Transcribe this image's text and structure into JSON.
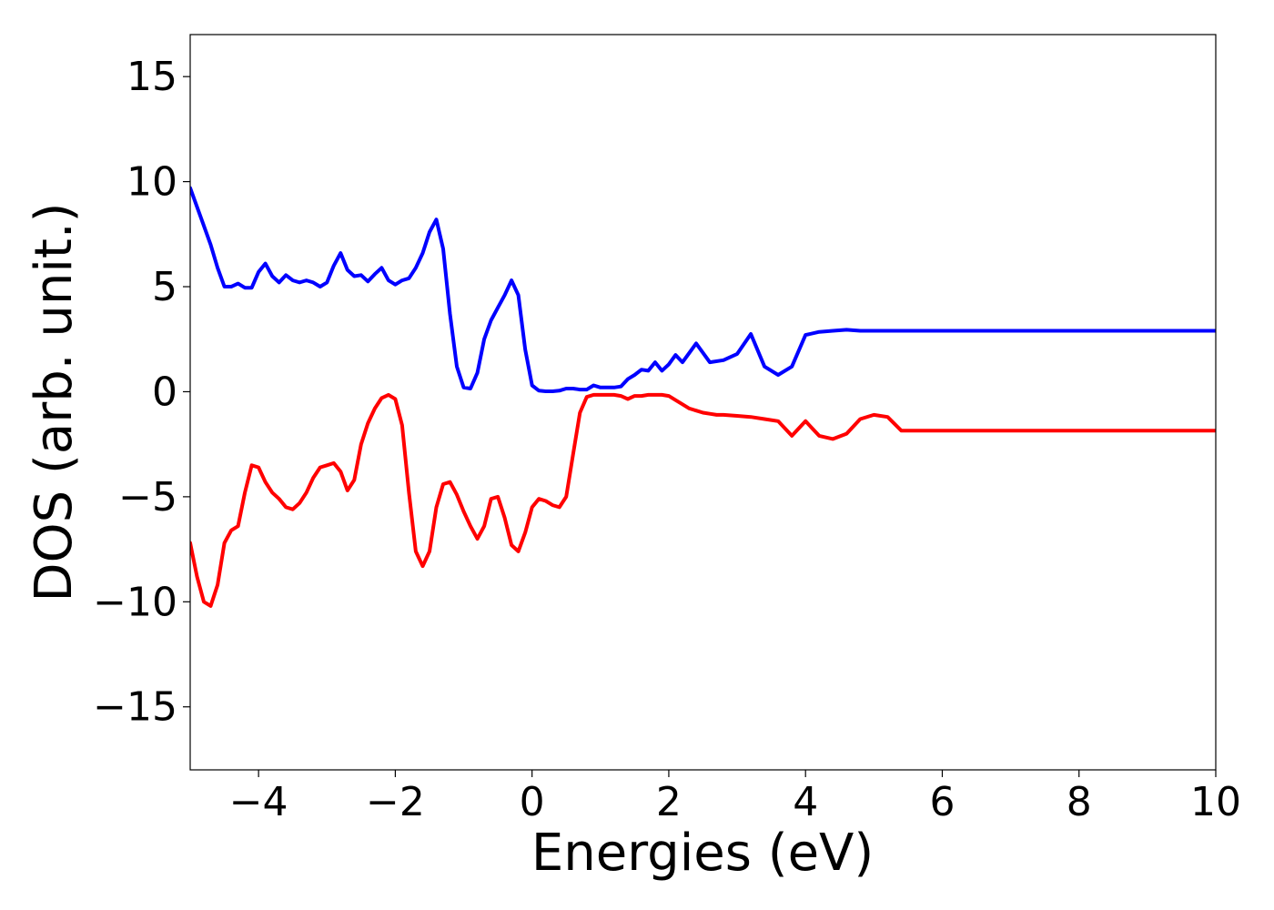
{
  "chart_data": {
    "type": "line",
    "xlabel": "Energies (eV)",
    "ylabel": "DOS (arb. unit.)",
    "xlim": [
      -5,
      10
    ],
    "ylim": [
      -18,
      17
    ],
    "xticks": [
      -4,
      -2,
      0,
      2,
      4,
      6,
      8,
      10
    ],
    "yticks": [
      -15,
      -10,
      -5,
      0,
      5,
      10,
      15
    ],
    "xtick_labels": [
      "−4",
      "−2",
      "0",
      "2",
      "4",
      "6",
      "8",
      "10"
    ],
    "ytick_labels": [
      "−15",
      "−10",
      "−5",
      "0",
      "5",
      "10",
      "15"
    ],
    "grid": false,
    "legend": "none",
    "series": [
      {
        "color": "#0000ff",
        "x": [
          -5.0,
          -4.9,
          -4.8,
          -4.7,
          -4.6,
          -4.5,
          -4.4,
          -4.3,
          -4.2,
          -4.1,
          -4.0,
          -3.9,
          -3.8,
          -3.7,
          -3.6,
          -3.5,
          -3.4,
          -3.3,
          -3.2,
          -3.1,
          -3.0,
          -2.9,
          -2.8,
          -2.7,
          -2.6,
          -2.5,
          -2.4,
          -2.3,
          -2.2,
          -2.1,
          -2.0,
          -1.9,
          -1.8,
          -1.7,
          -1.6,
          -1.5,
          -1.4,
          -1.3,
          -1.2,
          -1.1,
          -1.0,
          -0.9,
          -0.8,
          -0.7,
          -0.6,
          -0.5,
          -0.4,
          -0.3,
          -0.2,
          -0.1,
          0.0,
          0.1,
          0.2,
          0.3,
          0.4,
          0.5,
          0.6,
          0.7,
          0.8,
          0.9,
          1.0,
          1.1,
          1.2,
          1.3,
          1.4,
          1.5,
          1.6,
          1.7,
          1.8,
          1.9,
          2.0,
          2.1,
          2.2,
          2.4,
          2.6,
          2.8,
          3.0,
          3.2,
          3.4,
          3.6,
          3.8,
          4.0,
          4.2,
          4.4,
          4.6,
          4.8,
          5.0,
          5.2,
          5.4,
          5.6,
          5.8,
          6.0,
          6.2,
          6.4,
          6.6,
          6.8,
          7.0,
          7.2,
          7.4,
          7.6,
          7.8,
          8.0,
          8.2,
          8.4,
          8.6,
          8.8,
          9.0,
          9.2,
          9.4,
          9.6,
          9.8,
          10.0
        ],
        "y": [
          9.7,
          8.8,
          7.9,
          7.0,
          5.9,
          5.0,
          5.0,
          5.15,
          4.95,
          4.95,
          5.7,
          6.1,
          5.5,
          5.2,
          5.55,
          5.3,
          5.2,
          5.3,
          5.2,
          5.0,
          5.2,
          6.0,
          6.6,
          5.8,
          5.5,
          5.55,
          5.25,
          5.6,
          5.9,
          5.3,
          5.1,
          5.3,
          5.4,
          5.9,
          6.6,
          7.6,
          8.2,
          6.8,
          3.7,
          1.2,
          0.2,
          0.15,
          0.9,
          2.5,
          3.4,
          4.0,
          4.6,
          5.3,
          4.6,
          2.0,
          0.3,
          0.05,
          0.02,
          0.02,
          0.05,
          0.15,
          0.15,
          0.1,
          0.1,
          0.3,
          0.2,
          0.2,
          0.2,
          0.25,
          0.6,
          0.8,
          1.05,
          1.0,
          1.4,
          1.0,
          1.3,
          1.75,
          1.4,
          2.3,
          1.4,
          1.5,
          1.8,
          2.75,
          1.2,
          0.8,
          1.2,
          2.7,
          2.85,
          2.9,
          2.95,
          2.9,
          2.9,
          2.9,
          2.9,
          2.9,
          2.9,
          2.9,
          2.9,
          2.9,
          2.9,
          2.9,
          2.9,
          2.9,
          2.9,
          2.9,
          2.9,
          2.9,
          2.9,
          2.9,
          2.9,
          2.9,
          2.9,
          2.9,
          2.9,
          2.9,
          2.9,
          2.9
        ]
      },
      {
        "color": "#ff0000",
        "x": [
          -5.0,
          -4.9,
          -4.8,
          -4.7,
          -4.6,
          -4.5,
          -4.4,
          -4.3,
          -4.2,
          -4.1,
          -4.0,
          -3.9,
          -3.8,
          -3.7,
          -3.6,
          -3.5,
          -3.4,
          -3.3,
          -3.2,
          -3.1,
          -3.0,
          -2.9,
          -2.8,
          -2.7,
          -2.6,
          -2.5,
          -2.4,
          -2.3,
          -2.2,
          -2.1,
          -2.0,
          -1.9,
          -1.8,
          -1.7,
          -1.6,
          -1.5,
          -1.4,
          -1.3,
          -1.2,
          -1.1,
          -1.0,
          -0.9,
          -0.8,
          -0.7,
          -0.6,
          -0.5,
          -0.4,
          -0.3,
          -0.2,
          -0.1,
          0.0,
          0.1,
          0.2,
          0.3,
          0.4,
          0.5,
          0.6,
          0.7,
          0.8,
          0.9,
          1.0,
          1.1,
          1.2,
          1.3,
          1.4,
          1.5,
          1.6,
          1.7,
          1.8,
          1.9,
          2.0,
          2.1,
          2.2,
          2.3,
          2.4,
          2.5,
          2.6,
          2.7,
          2.8,
          3.0,
          3.2,
          3.4,
          3.6,
          3.8,
          4.0,
          4.2,
          4.4,
          4.6,
          4.8,
          5.0,
          5.2,
          5.4,
          5.6,
          5.8,
          6.0,
          6.2,
          6.4,
          6.6,
          6.8,
          7.0,
          7.2,
          7.4,
          7.6,
          7.8,
          8.0,
          8.2,
          8.4,
          8.6,
          8.8,
          9.0,
          9.2,
          9.4,
          9.6,
          9.8,
          10.0
        ],
        "y": [
          -7.2,
          -8.8,
          -10.0,
          -10.2,
          -9.2,
          -7.2,
          -6.6,
          -6.4,
          -4.8,
          -3.5,
          -3.6,
          -4.3,
          -4.8,
          -5.1,
          -5.5,
          -5.6,
          -5.3,
          -4.8,
          -4.1,
          -3.6,
          -3.5,
          -3.4,
          -3.8,
          -4.7,
          -4.2,
          -2.5,
          -1.5,
          -0.8,
          -0.3,
          -0.15,
          -0.35,
          -1.6,
          -4.8,
          -7.6,
          -8.3,
          -7.6,
          -5.5,
          -4.4,
          -4.3,
          -4.9,
          -5.7,
          -6.4,
          -7.0,
          -6.4,
          -5.1,
          -5.0,
          -6.0,
          -7.3,
          -7.6,
          -6.7,
          -5.5,
          -5.1,
          -5.2,
          -5.4,
          -5.5,
          -5.0,
          -3.0,
          -1.0,
          -0.25,
          -0.15,
          -0.15,
          -0.15,
          -0.15,
          -0.2,
          -0.35,
          -0.2,
          -0.2,
          -0.15,
          -0.15,
          -0.15,
          -0.2,
          -0.4,
          -0.6,
          -0.8,
          -0.9,
          -1.0,
          -1.05,
          -1.1,
          -1.1,
          -1.15,
          -1.2,
          -1.3,
          -1.4,
          -2.1,
          -1.4,
          -2.1,
          -2.25,
          -2.0,
          -1.3,
          -1.1,
          -1.2,
          -1.85,
          -1.85,
          -1.85,
          -1.85,
          -1.85,
          -1.85,
          -1.85,
          -1.85,
          -1.85,
          -1.85,
          -1.85,
          -1.85,
          -1.85,
          -1.85,
          -1.85,
          -1.85,
          -1.85,
          -1.85,
          -1.85,
          -1.85,
          -1.85,
          -1.85,
          -1.85,
          -1.85
        ]
      }
    ]
  }
}
